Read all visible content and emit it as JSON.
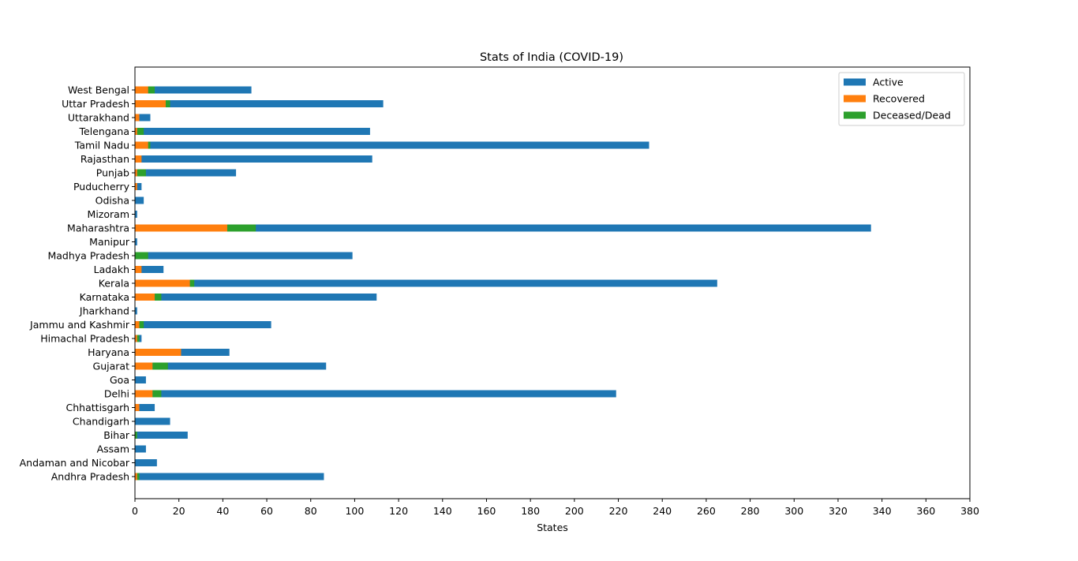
{
  "chart_data": {
    "type": "bar",
    "orientation": "horizontal",
    "stacked": true,
    "title": "Stats of India (COVID-19)",
    "xlabel": "States",
    "ylabel": "",
    "xlim": [
      0,
      380
    ],
    "xticks": [
      "0",
      "20",
      "40",
      "60",
      "80",
      "100",
      "120",
      "140",
      "160",
      "180",
      "200",
      "220",
      "240",
      "260",
      "280",
      "300",
      "320",
      "340",
      "360",
      "380"
    ],
    "grid": false,
    "legend_position": "top-right",
    "categories": [
      "Andhra Pradesh",
      "Andaman and Nicobar",
      "Assam",
      "Bihar",
      "Chandigarh",
      "Chhattisgarh",
      "Delhi",
      "Goa",
      "Gujarat",
      "Haryana",
      "Himachal Pradesh",
      "Jammu and Kashmir",
      "Jharkhand",
      "Karnataka",
      "Kerala",
      "Ladakh",
      "Madhya Pradesh",
      "Manipur",
      "Maharashtra",
      "Mizoram",
      "Odisha",
      "Puducherry",
      "Punjab",
      "Rajasthan",
      "Tamil Nadu",
      "Telengana",
      "Uttarakhand",
      "Uttar Pradesh",
      "West Bengal"
    ],
    "series": [
      {
        "name": "Active",
        "color": "#1f77b4",
        "values": [
          86,
          10,
          5,
          24,
          16,
          9,
          219,
          5,
          87,
          43,
          3,
          62,
          1,
          110,
          265,
          13,
          99,
          1,
          335,
          1,
          4,
          3,
          46,
          108,
          234,
          107,
          7,
          113,
          53
        ]
      },
      {
        "name": "Recovered",
        "color": "#ff7f0e",
        "values": [
          1,
          0,
          0,
          0,
          0,
          2,
          8,
          0,
          8,
          21,
          1,
          2,
          0,
          9,
          25,
          3,
          0,
          0,
          42,
          0,
          0,
          1,
          1,
          3,
          6,
          1,
          2,
          14,
          6
        ]
      },
      {
        "name": "Deceased/Dead",
        "color": "#2ca02c",
        "values": [
          1,
          0,
          0,
          1,
          0,
          0,
          4,
          0,
          7,
          0,
          1,
          2,
          0,
          3,
          2,
          0,
          6,
          0,
          13,
          0,
          0,
          0,
          4,
          0,
          1,
          3,
          0,
          2,
          3
        ]
      }
    ]
  }
}
